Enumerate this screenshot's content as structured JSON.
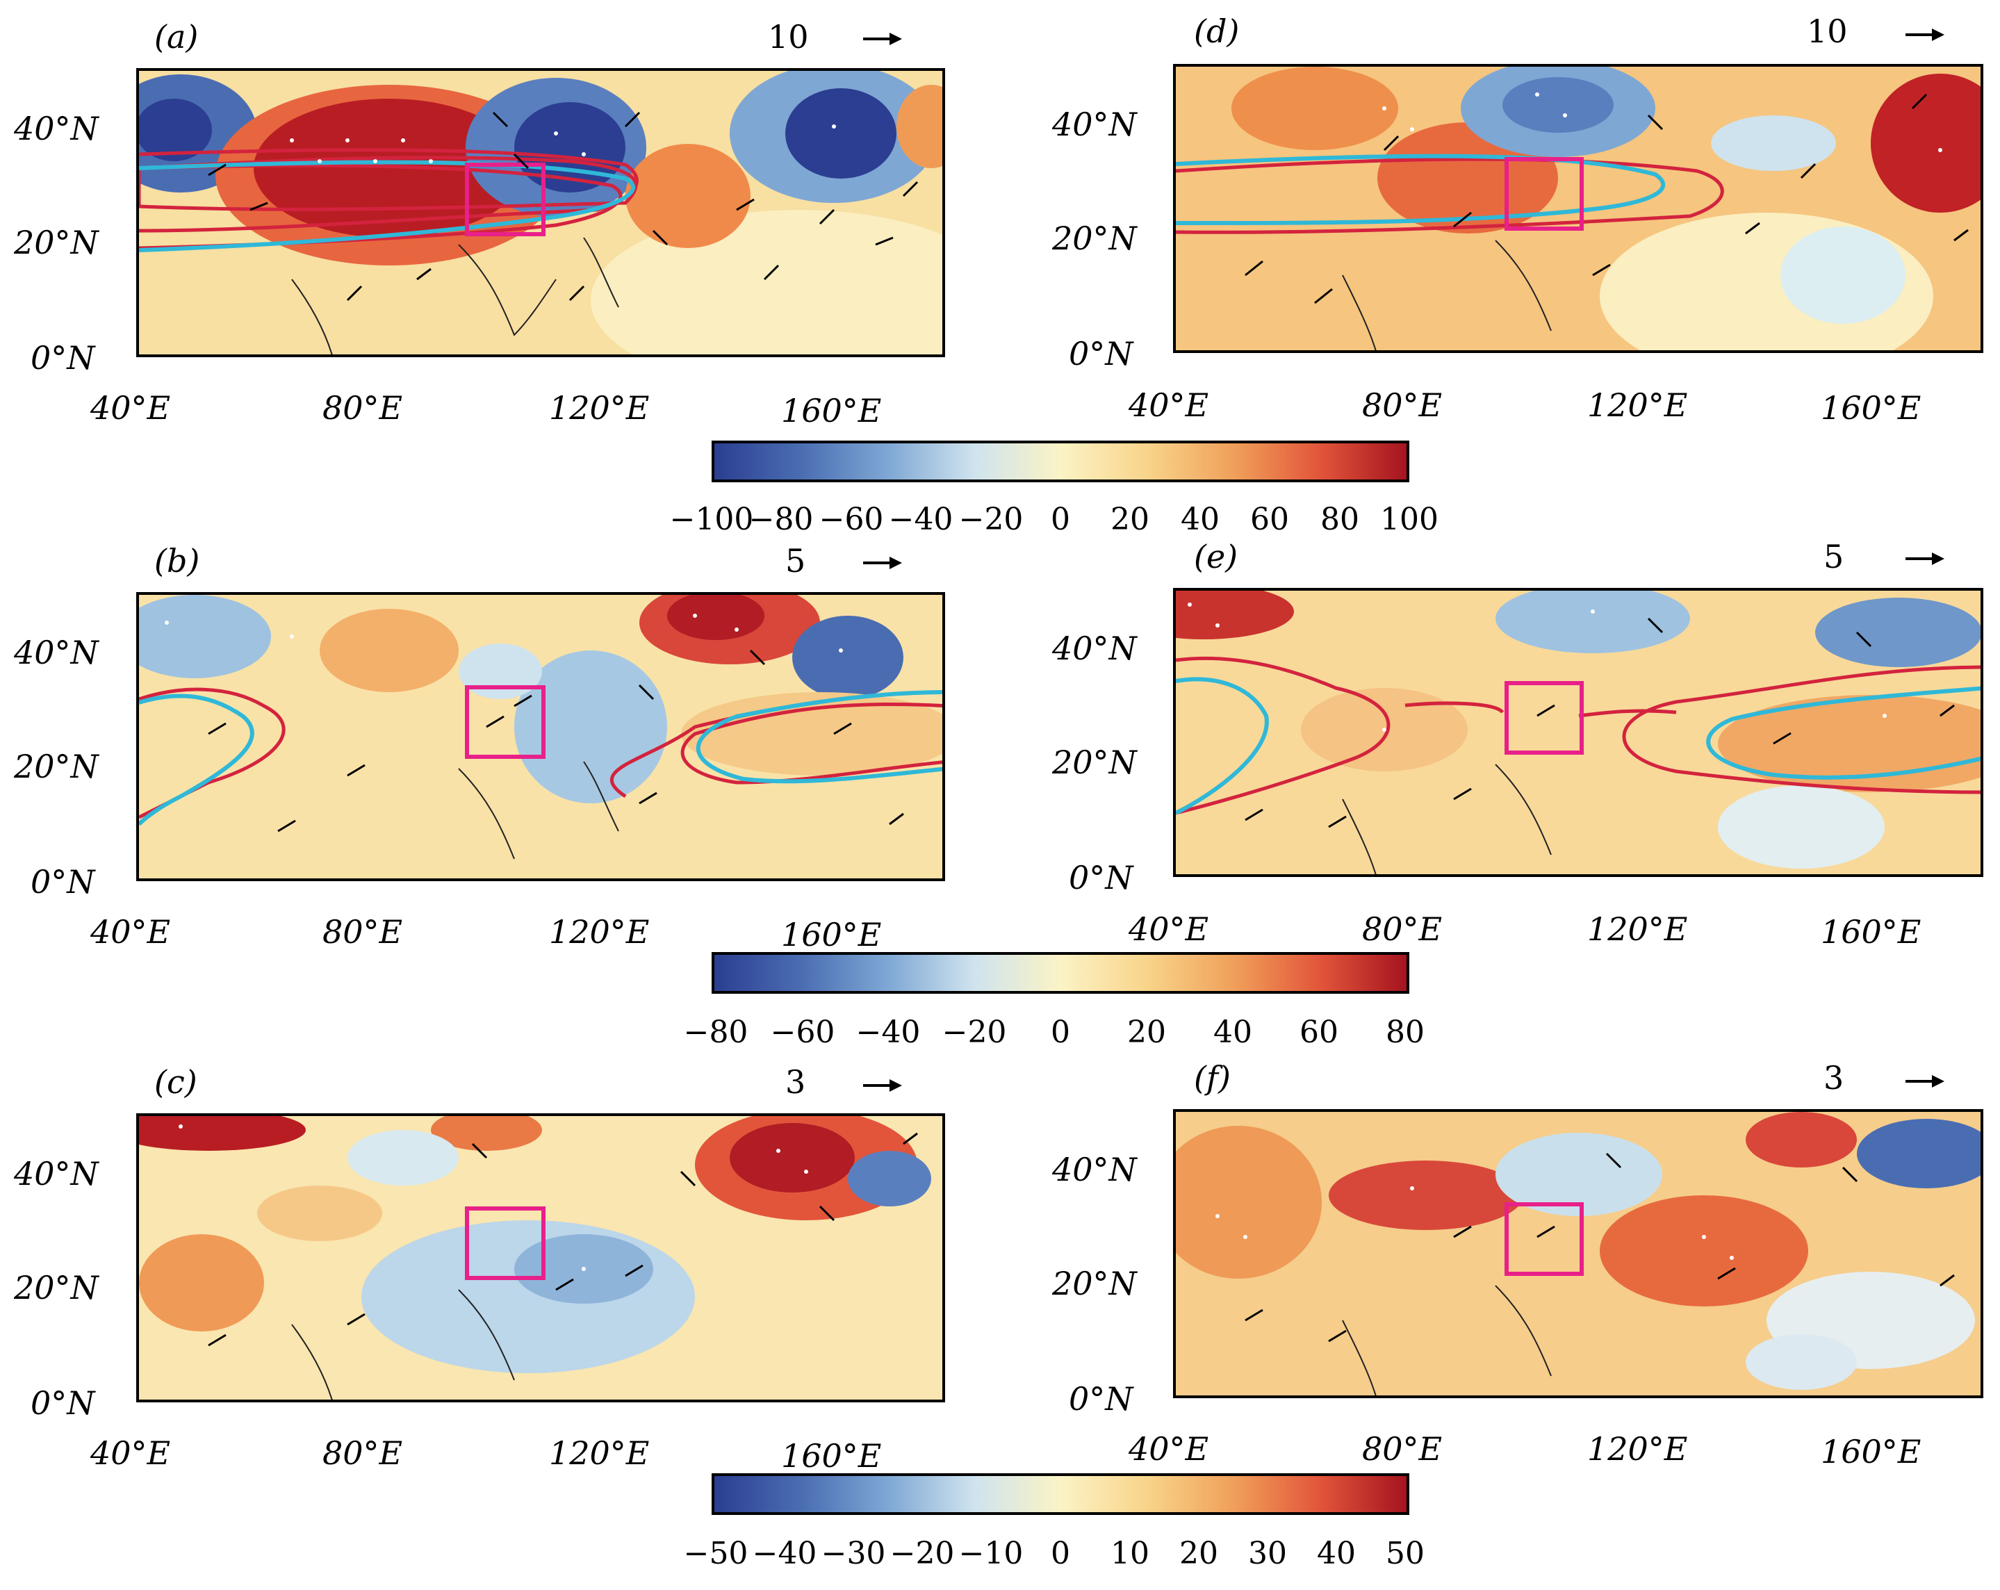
{
  "figure": {
    "panels": [
      {
        "id": "a",
        "label": "(a)",
        "ref_vector": "10",
        "row": 0,
        "col": 0
      },
      {
        "id": "d",
        "label": "(d)",
        "ref_vector": "10",
        "row": 0,
        "col": 1
      },
      {
        "id": "b",
        "label": "(b)",
        "ref_vector": "5",
        "row": 1,
        "col": 0
      },
      {
        "id": "e",
        "label": "(e)",
        "ref_vector": "5",
        "row": 1,
        "col": 1
      },
      {
        "id": "c",
        "label": "(c)",
        "ref_vector": "3",
        "row": 2,
        "col": 0
      },
      {
        "id": "f",
        "label": "(f)",
        "ref_vector": "3",
        "row": 2,
        "col": 1
      }
    ],
    "lat_ticks": [
      "40°N",
      "20°N",
      "0°N"
    ],
    "lon_ticks": [
      "40°E",
      "80°E",
      "120°E",
      "160°E"
    ],
    "colorbars": [
      {
        "id": "cb1",
        "labels": [
          "−100",
          "−80",
          "−60",
          "−40",
          "−20",
          "0",
          "20",
          "40",
          "60",
          "80",
          "100"
        ]
      },
      {
        "id": "cb2",
        "labels": [
          "−80",
          "−60",
          "−40",
          "−20",
          "0",
          "20",
          "40",
          "60",
          "80"
        ]
      },
      {
        "id": "cb3",
        "labels": [
          "−50",
          "−40",
          "−30",
          "−20",
          "−10",
          "0",
          "10",
          "20",
          "30",
          "40",
          "50"
        ]
      }
    ],
    "colors": {
      "strong_negative": "#2b3e91",
      "negative": "#6fa3cf",
      "neutral": "#fbf3c5",
      "positive": "#f0a05a",
      "strong_positive": "#a5141f",
      "contour_cyan": "#2fb8d8",
      "contour_red": "#d3233e",
      "box_magenta": "#e8208a"
    }
  }
}
